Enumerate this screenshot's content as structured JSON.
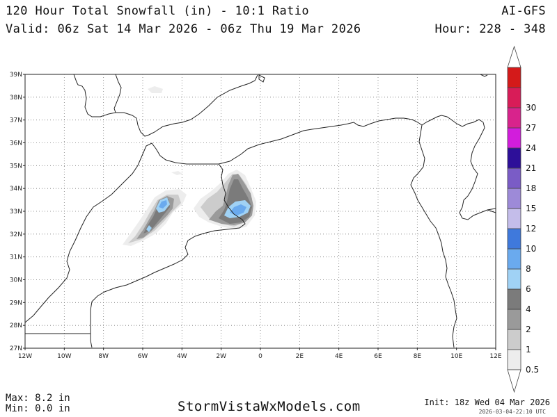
{
  "header": {
    "title": "120 Hour Total Snowfall (in) - 10:1 Ratio",
    "valid": "Valid: 06z Sat 14 Mar 2026 - 06z Thu 19 Mar 2026",
    "model": "AI-GFS",
    "hour": "Hour: 228 - 348"
  },
  "map": {
    "lat_labels": [
      "39N",
      "38N",
      "37N",
      "36N",
      "35N",
      "34N",
      "33N",
      "32N",
      "31N",
      "30N",
      "29N",
      "28N",
      "27N"
    ],
    "lon_labels": [
      "12W",
      "10W",
      "8W",
      "6W",
      "4W",
      "2W",
      "0",
      "2E",
      "4E",
      "6E",
      "8E",
      "10E",
      "12E"
    ],
    "lat_range": [
      27,
      39
    ],
    "lon_range": [
      -12,
      12
    ],
    "grid": "dotted"
  },
  "legend": {
    "colors": [
      "#ededed",
      "#cccccc",
      "#9a9a9a",
      "#7b7b7b",
      "#a0d2f5",
      "#6aaaee",
      "#3f79dc",
      "#c4bdea",
      "#9d8ad8",
      "#7a5cc6",
      "#2d0f99",
      "#d21ddc",
      "#d8238c",
      "#d81c58",
      "#d41a1a"
    ],
    "labels": [
      "0.5",
      "1",
      "2",
      "4",
      "6",
      "8",
      "10",
      "12",
      "15",
      "18",
      "21",
      "24",
      "27",
      "30"
    ]
  },
  "footer": {
    "max": "Max: 8.2 in",
    "min": "Min: 0.0 in",
    "site": "StormVistaWxModels.com",
    "init": "Init: 18z Wed 04 Mar 2026",
    "timestamp": "2026-03-04-22:10 UTC"
  }
}
